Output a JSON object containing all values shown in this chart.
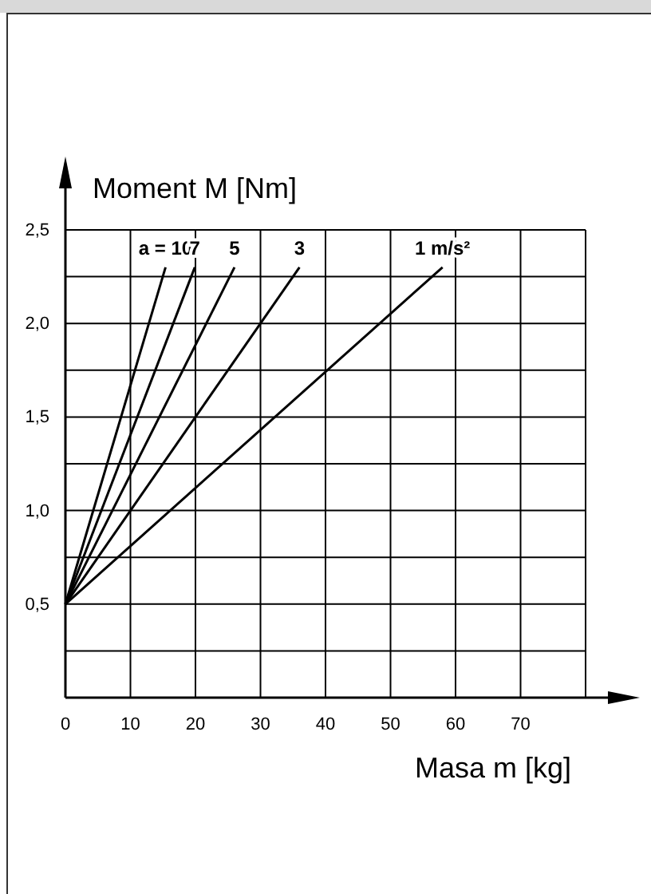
{
  "chart_data": {
    "type": "line",
    "xlabel": "Masa m [kg]",
    "ylabel": "Moment M [Nm]",
    "xlim": [
      0,
      80
    ],
    "ylim": [
      0,
      2.5
    ],
    "xticks": [
      0,
      10,
      20,
      30,
      40,
      50,
      60,
      70,
      {
        "value": 80,
        "label": null
      }
    ],
    "yticks": [
      {
        "value": 0.25,
        "label": null
      },
      {
        "value": 0.5,
        "label": "0,5"
      },
      {
        "value": 0.75,
        "label": null
      },
      {
        "value": 1,
        "label": "1,0"
      },
      {
        "value": 1.25,
        "label": null
      },
      {
        "value": 1.5,
        "label": "1,5"
      },
      {
        "value": 1.75,
        "label": null
      },
      {
        "value": 2,
        "label": "2,0"
      },
      {
        "value": 2.25,
        "label": null
      },
      {
        "value": 2.5,
        "label": "2,5"
      }
    ],
    "grid": true,
    "marker": "none",
    "line_style": "solid",
    "series": [
      {
        "name": "a = 10",
        "color": "#000000",
        "x": [
          0,
          15.4
        ],
        "values": [
          0.5,
          2.3
        ]
      },
      {
        "name": "7",
        "color": "#000000",
        "x": [
          0,
          19.9
        ],
        "values": [
          0.5,
          2.3
        ]
      },
      {
        "name": "5",
        "color": "#000000",
        "x": [
          0,
          26
        ],
        "values": [
          0.5,
          2.3
        ]
      },
      {
        "name": "3",
        "color": "#000000",
        "x": [
          0,
          36
        ],
        "values": [
          0.5,
          2.3
        ]
      },
      {
        "name": "1 m/s²",
        "color": "#000000",
        "x": [
          0,
          58
        ],
        "values": [
          0.5,
          2.3
        ]
      }
    ]
  }
}
